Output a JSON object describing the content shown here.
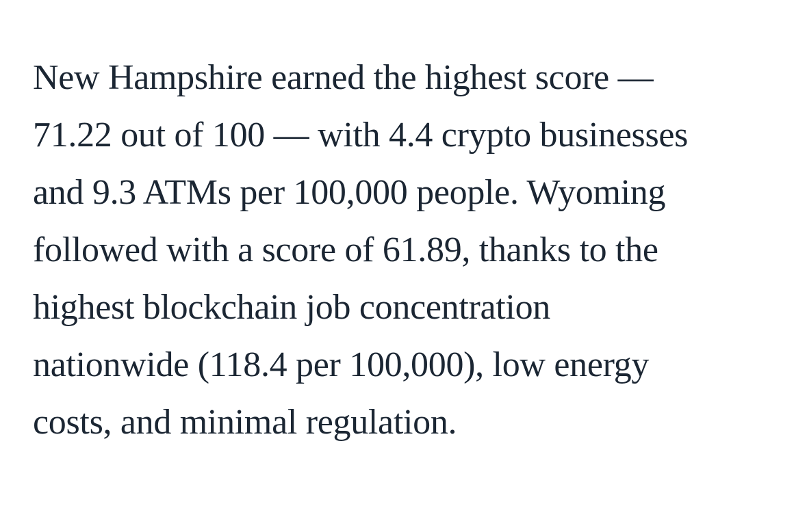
{
  "page": {
    "background_color": "#ffffff",
    "text_color": "#1b2633"
  },
  "paragraph": {
    "full_text": "New Hampshire earned the highest score — 71.22 out of 100 — with 4.4 crypto businesses and 9.3 ATMs per 100,000 people. Wyoming followed with a score of 61.89, thanks to the highest blockchain job concentration nationwide (118.4 per 100,000), low energy costs, and minimal regulation.",
    "lines": [
      "New Hampshire earned the highest score —",
      "71.22 out of 100 — with 4.4 crypto businesses",
      "and 9.3 ATMs per 100,000 people. Wyoming",
      "followed with a score of 61.89, thanks to the",
      "highest blockchain job concentration",
      "nationwide (118.4 per 100,000), low energy",
      "costs, and minimal regulation."
    ],
    "facts": {
      "new_hampshire_score": "71.22",
      "score_scale": "100",
      "crypto_businesses_per_100k": "4.4",
      "atms_per_100k": "9.3",
      "wyoming_score": "61.89",
      "wyoming_blockchain_jobs_per_100k": "118.4"
    }
  }
}
